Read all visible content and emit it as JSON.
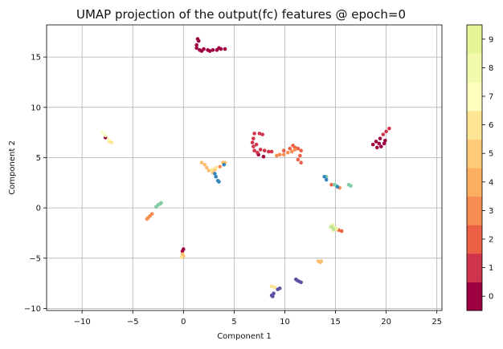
{
  "chart_data": {
    "type": "scatter",
    "title": "UMAP projection of the output(fc) features @ epoch=0",
    "xlabel": "Component 1",
    "ylabel": "Component 2",
    "xlim": [
      -13.5,
      25.5
    ],
    "ylim": [
      -10.2,
      18.2
    ],
    "xticks": [
      -10,
      -5,
      0,
      5,
      10,
      15,
      20,
      25
    ],
    "yticks": [
      -10,
      -5,
      0,
      5,
      10,
      15
    ],
    "grid": true,
    "legend": "none",
    "colorbar": {
      "ticks": [
        "0",
        "1",
        "2",
        "3",
        "4",
        "5",
        "6",
        "7",
        "8",
        "9"
      ],
      "colors": [
        "#9e0142",
        "#d0344d",
        "#ec6146",
        "#f88d52",
        "#fdbe6f",
        "#fee593",
        "#fefcbf",
        "#e9f6a0",
        "#bde5a0",
        "#82cda5"
      ],
      "display_colors": [
        "#9e0142",
        "#d0344d",
        "#ec6146",
        "#f88d52",
        "#fdae61",
        "#fdcb7a",
        "#fee593",
        "#ffffbf",
        "#f3faad",
        "#e6f598"
      ]
    },
    "series": [
      {
        "class": 0,
        "color": "#9e0142",
        "points": [
          [
            1.4,
            16.8
          ],
          [
            1.5,
            16.6
          ],
          [
            1.3,
            16.2
          ],
          [
            1.3,
            15.9
          ],
          [
            1.6,
            15.7
          ],
          [
            2.0,
            15.8
          ],
          [
            2.4,
            15.7
          ],
          [
            2.9,
            15.7
          ],
          [
            3.3,
            15.7
          ],
          [
            3.7,
            15.8
          ],
          [
            4.1,
            15.8
          ],
          [
            3.5,
            15.9
          ],
          [
            2.6,
            15.6
          ],
          [
            1.8,
            15.6
          ],
          [
            19.0,
            6.6
          ],
          [
            18.7,
            6.3
          ],
          [
            19.3,
            6.4
          ],
          [
            19.5,
            6.1
          ],
          [
            19.8,
            6.4
          ],
          [
            19.4,
            6.9
          ],
          [
            19.9,
            6.7
          ],
          [
            19.1,
            6.0
          ],
          [
            0.0,
            -4.1
          ],
          [
            -0.1,
            -4.3
          ],
          [
            7.4,
            5.3
          ],
          [
            7.9,
            5.1
          ],
          [
            -7.7,
            7.0
          ]
        ]
      },
      {
        "class": 1,
        "color": "#d0344d",
        "points": [
          [
            7.0,
            7.4
          ],
          [
            7.5,
            7.4
          ],
          [
            7.8,
            7.3
          ],
          [
            6.9,
            6.9
          ],
          [
            6.8,
            6.5
          ],
          [
            6.9,
            6.1
          ],
          [
            7.0,
            5.7
          ],
          [
            7.3,
            5.5
          ],
          [
            7.6,
            5.8
          ],
          [
            8.0,
            5.7
          ],
          [
            8.4,
            5.6
          ],
          [
            8.7,
            5.6
          ],
          [
            7.2,
            6.3
          ],
          [
            20.0,
            7.6
          ],
          [
            20.3,
            7.9
          ],
          [
            19.7,
            7.3
          ]
        ]
      },
      {
        "class": 2,
        "color": "#ec6146",
        "points": [
          [
            10.8,
            6.2
          ],
          [
            11.0,
            6.0
          ],
          [
            11.3,
            5.9
          ],
          [
            11.6,
            5.7
          ],
          [
            11.5,
            5.2
          ],
          [
            11.3,
            4.8
          ],
          [
            11.6,
            4.5
          ],
          [
            10.5,
            5.9
          ],
          [
            9.9,
            5.7
          ],
          [
            15.3,
            -2.2
          ],
          [
            15.6,
            -2.3
          ],
          [
            15.1,
            -2.1
          ],
          [
            14.6,
            2.3
          ]
        ]
      },
      {
        "class": 3,
        "color": "#f88d52",
        "points": [
          [
            9.5,
            5.3
          ],
          [
            9.9,
            5.3
          ],
          [
            10.3,
            5.5
          ],
          [
            10.7,
            5.6
          ],
          [
            11.0,
            5.8
          ],
          [
            9.2,
            5.2
          ],
          [
            -3.5,
            -1.0
          ],
          [
            -3.3,
            -0.8
          ],
          [
            -3.1,
            -0.6
          ],
          [
            -3.6,
            -1.1
          ],
          [
            3.6,
            4.1
          ],
          [
            15.4,
            2.0
          ]
        ]
      },
      {
        "class": 4,
        "color": "#fdbe6f",
        "points": [
          [
            1.8,
            4.5
          ],
          [
            2.1,
            4.3
          ],
          [
            2.3,
            4.0
          ],
          [
            2.5,
            3.7
          ],
          [
            2.9,
            3.5
          ],
          [
            3.1,
            3.8
          ],
          [
            3.9,
            4.5
          ],
          [
            4.1,
            4.5
          ],
          [
            13.3,
            -5.3
          ],
          [
            13.6,
            -5.3
          ],
          [
            13.5,
            -5.4
          ],
          [
            -0.1,
            -4.6
          ],
          [
            0.0,
            -4.8
          ]
        ]
      },
      {
        "class": 5,
        "color": "#fee593",
        "points": [
          [
            2.8,
            3.8
          ],
          [
            3.2,
            4.0
          ],
          [
            8.7,
            -7.8
          ],
          [
            9.0,
            -7.9
          ],
          [
            -7.3,
            6.6
          ],
          [
            -7.1,
            6.5
          ],
          [
            -0.2,
            -4.9
          ]
        ]
      },
      {
        "class": 6,
        "color": "#fefcbf",
        "points": [
          [
            -8.0,
            7.5
          ],
          [
            -7.7,
            7.2
          ],
          [
            -7.4,
            6.8
          ]
        ]
      },
      {
        "class": 7,
        "color": "#e9f6a0",
        "points": [
          [
            14.6,
            -1.8
          ],
          [
            14.9,
            -2.0
          ],
          [
            15.1,
            -2.1
          ],
          [
            14.5,
            -1.9
          ],
          [
            14.8,
            -2.2
          ],
          [
            14.7,
            -1.7
          ]
        ]
      },
      {
        "class": 8,
        "color": "#bde5a0",
        "points": [
          [
            14.6,
            -1.9
          ],
          [
            14.8,
            -2.1
          ]
        ]
      },
      {
        "class": 9,
        "color": "#82cda5",
        "points": [
          [
            -2.5,
            0.3
          ],
          [
            -2.3,
            0.4
          ],
          [
            -2.2,
            0.5
          ],
          [
            -2.7,
            0.1
          ],
          [
            16.3,
            2.3
          ],
          [
            16.5,
            2.2
          ],
          [
            14.9,
            2.3
          ],
          [
            15.1,
            2.2
          ],
          [
            14.1,
            3.1
          ]
        ]
      },
      {
        "class": 10,
        "color": "#3288bd",
        "points": [
          [
            3.2,
            3.1
          ],
          [
            3.4,
            2.7
          ],
          [
            3.5,
            2.6
          ],
          [
            3.1,
            3.4
          ],
          [
            13.9,
            3.1
          ],
          [
            14.1,
            2.8
          ],
          [
            15.2,
            2.1
          ],
          [
            4.0,
            4.3
          ]
        ]
      },
      {
        "class": 11,
        "color": "#5e4fa2",
        "points": [
          [
            11.1,
            -7.1
          ],
          [
            11.4,
            -7.3
          ],
          [
            11.6,
            -7.4
          ],
          [
            11.2,
            -7.2
          ],
          [
            8.8,
            -8.8
          ],
          [
            8.9,
            -8.5
          ],
          [
            9.3,
            -8.1
          ],
          [
            9.5,
            -8.0
          ],
          [
            8.7,
            -8.7
          ]
        ]
      }
    ]
  }
}
